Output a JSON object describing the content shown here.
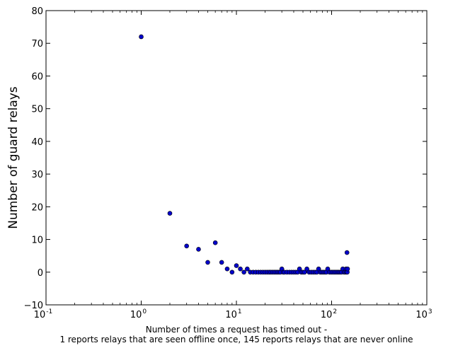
{
  "chart_data": {
    "type": "scatter",
    "title": "",
    "xlabel": "Number of times a request has timed out -",
    "xlabel_line2": "1 reports relays that are seen offline once, 145 reports relays that are never online",
    "ylabel": "Number of guard relays",
    "xscale": "log",
    "xlim": [
      0.1,
      1000
    ],
    "ylim": [
      -10,
      80
    ],
    "grid": false,
    "legend": "none",
    "marker_color": "#0000cc",
    "x_ticks": [
      {
        "value": 0.1,
        "base": "10",
        "exp": "-1"
      },
      {
        "value": 1,
        "base": "10",
        "exp": "0"
      },
      {
        "value": 10,
        "base": "10",
        "exp": "1"
      },
      {
        "value": 100,
        "base": "10",
        "exp": "2"
      },
      {
        "value": 1000,
        "base": "10",
        "exp": "3"
      }
    ],
    "y_ticks": [
      {
        "value": 80,
        "label": "80"
      },
      {
        "value": 70,
        "label": "70"
      },
      {
        "value": 60,
        "label": "60"
      },
      {
        "value": 50,
        "label": "50"
      },
      {
        "value": 40,
        "label": "40"
      },
      {
        "value": 30,
        "label": "30"
      },
      {
        "value": 20,
        "label": "20"
      },
      {
        "value": 10,
        "label": "10"
      },
      {
        "value": 0,
        "label": "0"
      },
      {
        "value": -10,
        "label": "−10"
      }
    ],
    "points": [
      {
        "x": 1,
        "y": 72
      },
      {
        "x": 2,
        "y": 18
      },
      {
        "x": 3,
        "y": 8
      },
      {
        "x": 4,
        "y": 7
      },
      {
        "x": 5,
        "y": 3
      },
      {
        "x": 6,
        "y": 9
      },
      {
        "x": 7,
        "y": 3
      },
      {
        "x": 8,
        "y": 1
      },
      {
        "x": 9,
        "y": 0
      },
      {
        "x": 10,
        "y": 2
      },
      {
        "x": 11,
        "y": 1
      },
      {
        "x": 12,
        "y": 0
      },
      {
        "x": 13,
        "y": 1
      },
      {
        "x": 14,
        "y": 0
      },
      {
        "x": 15,
        "y": 0
      },
      {
        "x": 16,
        "y": 0
      },
      {
        "x": 17,
        "y": 0
      },
      {
        "x": 18,
        "y": 0
      },
      {
        "x": 19,
        "y": 0
      },
      {
        "x": 20,
        "y": 0
      },
      {
        "x": 21,
        "y": 0
      },
      {
        "x": 22,
        "y": 0
      },
      {
        "x": 23,
        "y": 0
      },
      {
        "x": 24,
        "y": 0
      },
      {
        "x": 25,
        "y": 0
      },
      {
        "x": 26,
        "y": 0
      },
      {
        "x": 27,
        "y": 0
      },
      {
        "x": 28,
        "y": 0
      },
      {
        "x": 29,
        "y": 0
      },
      {
        "x": 30,
        "y": 1
      },
      {
        "x": 31,
        "y": 0
      },
      {
        "x": 32,
        "y": 0
      },
      {
        "x": 34,
        "y": 0
      },
      {
        "x": 36,
        "y": 0
      },
      {
        "x": 38,
        "y": 0
      },
      {
        "x": 40,
        "y": 0
      },
      {
        "x": 42,
        "y": 0
      },
      {
        "x": 44,
        "y": 0
      },
      {
        "x": 46,
        "y": 1
      },
      {
        "x": 48,
        "y": 0
      },
      {
        "x": 50,
        "y": 0
      },
      {
        "x": 52,
        "y": 0
      },
      {
        "x": 55,
        "y": 1
      },
      {
        "x": 58,
        "y": 0
      },
      {
        "x": 61,
        "y": 0
      },
      {
        "x": 64,
        "y": 0
      },
      {
        "x": 67,
        "y": 0
      },
      {
        "x": 70,
        "y": 0
      },
      {
        "x": 73,
        "y": 1
      },
      {
        "x": 76,
        "y": 0
      },
      {
        "x": 79,
        "y": 0
      },
      {
        "x": 82,
        "y": 0
      },
      {
        "x": 85,
        "y": 0
      },
      {
        "x": 88,
        "y": 0
      },
      {
        "x": 91,
        "y": 1
      },
      {
        "x": 95,
        "y": 0
      },
      {
        "x": 99,
        "y": 0
      },
      {
        "x": 103,
        "y": 0
      },
      {
        "x": 107,
        "y": 0
      },
      {
        "x": 111,
        "y": 0
      },
      {
        "x": 115,
        "y": 0
      },
      {
        "x": 119,
        "y": 0
      },
      {
        "x": 123,
        "y": 0
      },
      {
        "x": 127,
        "y": 0
      },
      {
        "x": 131,
        "y": 1
      },
      {
        "x": 135,
        "y": 0
      },
      {
        "x": 139,
        "y": 0
      },
      {
        "x": 142,
        "y": 1
      },
      {
        "x": 144,
        "y": 0
      },
      {
        "x": 145,
        "y": 6
      },
      {
        "x": 146,
        "y": 0
      },
      {
        "x": 147,
        "y": 1
      }
    ]
  }
}
